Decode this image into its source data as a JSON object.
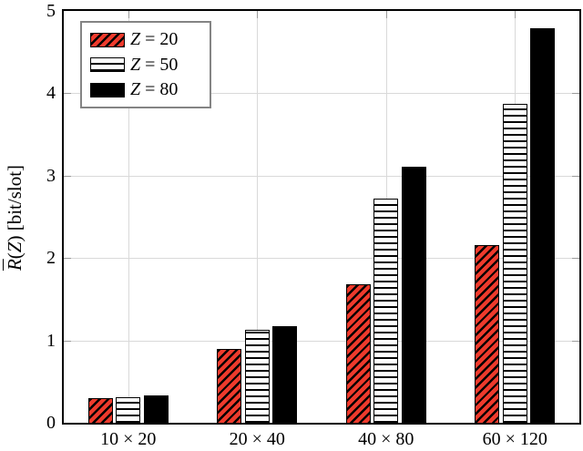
{
  "chart_data": {
    "type": "bar",
    "title": "",
    "xlabel": "",
    "ylabel": "R̄(Z) [bit/slot]",
    "ylabel_parts": {
      "r_overlined": "R",
      "paren_open": "(",
      "variable": "Z",
      "paren_close_units": ") [bit/slot]"
    },
    "categories": [
      "10 × 20",
      "20 × 40",
      "40 × 80",
      "60 × 120"
    ],
    "series": [
      {
        "name": "Z = 20",
        "style": "red-hatch",
        "color": "#ee3a2c",
        "values": [
          0.3,
          0.9,
          1.68,
          2.16
        ]
      },
      {
        "name": "Z = 50",
        "style": "white-hlines",
        "color": "#ffffff",
        "values": [
          0.31,
          1.13,
          2.72,
          3.87
        ]
      },
      {
        "name": "Z = 80",
        "style": "solid-black",
        "color": "#000000",
        "values": [
          0.33,
          1.17,
          3.11,
          4.79
        ]
      }
    ],
    "ylim": [
      0,
      5
    ],
    "yticks": [
      0,
      1,
      2,
      3,
      4,
      5
    ],
    "grid": true,
    "legend_position": "top-left"
  },
  "legend": {
    "items": [
      {
        "variable": "Z",
        "rest": "= 20",
        "swatch": "red-hatch"
      },
      {
        "variable": "Z",
        "rest": "= 50",
        "swatch": "white-hlines"
      },
      {
        "variable": "Z",
        "rest": "= 80",
        "swatch": "solid-black"
      }
    ]
  },
  "colors": {
    "bar_red": "#ee3a2c",
    "bar_black": "#000000",
    "gridline": "#d9d9d9",
    "tick": "#9b9b9b",
    "axis_border": "#000000",
    "legend_border": "#848484",
    "background": "#ffffff"
  }
}
